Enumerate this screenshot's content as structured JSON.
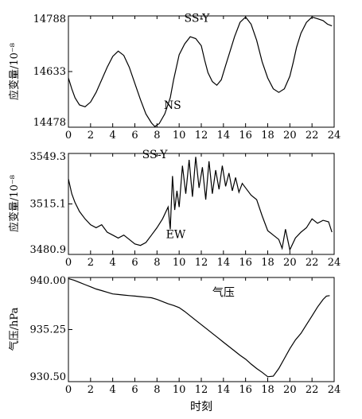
{
  "chart_data": [
    {
      "type": "line",
      "ylabel": "应变量/10⁻⁸",
      "xlabel": "",
      "xlim": [
        0,
        24
      ],
      "ylim": [
        14478,
        14788
      ],
      "xticks": [
        0,
        2,
        4,
        6,
        8,
        10,
        12,
        14,
        16,
        18,
        20,
        22,
        24
      ],
      "yticks": [
        14478,
        14633,
        14788
      ],
      "annotations": [
        {
          "text": "SS-Y",
          "x": 11.6,
          "y": 14771
        },
        {
          "text": "NS",
          "x": 9.4,
          "y": 14529
        }
      ],
      "series": [
        {
          "x": [
            0,
            0.3,
            0.6,
            1,
            1.5,
            2,
            2.5,
            3,
            3.5,
            4,
            4.5,
            5,
            5.5,
            6,
            6.5,
            7,
            7.5,
            7.8,
            8.2,
            8.7,
            9.2,
            9.5,
            10,
            10.5,
            11,
            11.5,
            12,
            12.3,
            12.6,
            13,
            13.4,
            13.8,
            14.2,
            14.6,
            15,
            15.5,
            16,
            16.5,
            17,
            17.5,
            18,
            18.5,
            19,
            19.5,
            20,
            20.3,
            20.6,
            21,
            21.5,
            22,
            22.5,
            23,
            23.4,
            23.8
          ],
          "y": [
            14615,
            14585,
            14560,
            14540,
            14535,
            14548,
            14575,
            14610,
            14645,
            14675,
            14690,
            14678,
            14645,
            14600,
            14555,
            14515,
            14490,
            14480,
            14488,
            14515,
            14560,
            14610,
            14680,
            14710,
            14730,
            14725,
            14705,
            14665,
            14630,
            14605,
            14595,
            14610,
            14650,
            14690,
            14730,
            14770,
            14785,
            14765,
            14720,
            14660,
            14615,
            14585,
            14575,
            14585,
            14620,
            14658,
            14700,
            14740,
            14770,
            14785,
            14780,
            14775,
            14765,
            14760
          ]
        }
      ]
    },
    {
      "type": "line",
      "ylabel": "应变量/10⁻⁸",
      "xlabel": "",
      "xlim": [
        0,
        24
      ],
      "ylim": [
        3480.9,
        3549.3
      ],
      "xticks": [
        0,
        2,
        4,
        6,
        8,
        10,
        12,
        14,
        16,
        18,
        20,
        22,
        24
      ],
      "yticks": [
        3480.9,
        3515.1,
        3549.3
      ],
      "annotations": [
        {
          "text": "SS-Y",
          "x": 7.8,
          "y": 3546
        },
        {
          "text": "EW",
          "x": 9.7,
          "y": 3492
        }
      ],
      "series": [
        {
          "x": [
            0,
            0.3,
            0.6,
            1,
            1.5,
            2,
            2.5,
            3,
            3.5,
            4,
            4.5,
            5,
            5.5,
            6,
            6.5,
            7,
            7.5,
            8,
            8.5,
            9,
            9.2,
            9.4,
            9.6,
            9.8,
            10,
            10.3,
            10.6,
            10.9,
            11.2,
            11.5,
            11.8,
            12.1,
            12.4,
            12.7,
            13,
            13.3,
            13.6,
            13.9,
            14.2,
            14.5,
            14.8,
            15.1,
            15.4,
            15.7,
            16,
            16.5,
            17,
            17.5,
            18,
            18.5,
            19,
            19.3,
            19.6,
            20,
            20.5,
            21,
            21.5,
            22,
            22.5,
            23,
            23.5,
            23.8
          ],
          "y": [
            3532,
            3522,
            3516,
            3510,
            3505,
            3501,
            3499,
            3501,
            3496,
            3494,
            3492,
            3494,
            3491,
            3488,
            3487,
            3489,
            3494,
            3499,
            3505,
            3513,
            3498,
            3534,
            3511,
            3524,
            3513,
            3541,
            3522,
            3545,
            3520,
            3547,
            3526,
            3540,
            3518,
            3544,
            3522,
            3538,
            3525,
            3541,
            3527,
            3536,
            3524,
            3533,
            3523,
            3529,
            3526,
            3521,
            3518,
            3507,
            3497,
            3494,
            3491,
            3485,
            3498,
            3484,
            3492,
            3496,
            3499,
            3505,
            3502,
            3504,
            3503,
            3496
          ]
        }
      ]
    },
    {
      "type": "line",
      "ylabel": "气压/hPa",
      "xlabel": "时刻",
      "xlim": [
        0,
        24
      ],
      "ylim": [
        930.5,
        940.0
      ],
      "xticks": [
        0,
        2,
        4,
        6,
        8,
        10,
        12,
        14,
        16,
        18,
        20,
        22,
        24
      ],
      "yticks": [
        930.5,
        935.25,
        940.0
      ],
      "annotations": [
        {
          "text": "气压",
          "x": 14.0,
          "y": 938.3
        }
      ],
      "series": [
        {
          "x": [
            0,
            0.5,
            1,
            1.5,
            2,
            2.5,
            3,
            3.5,
            4,
            4.5,
            5,
            5.5,
            6,
            6.5,
            7,
            7.5,
            8,
            8.5,
            9,
            9.5,
            10,
            10.5,
            11,
            11.5,
            12,
            12.5,
            13,
            13.5,
            14,
            14.5,
            15,
            15.5,
            16,
            16.5,
            17,
            17.5,
            18,
            18.5,
            19,
            19.5,
            20,
            20.5,
            21,
            21.5,
            22,
            22.5,
            23,
            23.3,
            23.6
          ],
          "y": [
            939.9,
            939.75,
            939.55,
            939.35,
            939.15,
            938.95,
            938.8,
            938.65,
            938.5,
            938.45,
            938.4,
            938.35,
            938.3,
            938.25,
            938.2,
            938.15,
            938.0,
            937.8,
            937.6,
            937.45,
            937.25,
            936.9,
            936.5,
            936.1,
            935.7,
            935.3,
            934.9,
            934.5,
            934.1,
            933.7,
            933.3,
            932.9,
            932.55,
            932.1,
            931.7,
            931.35,
            930.95,
            931.0,
            931.7,
            932.6,
            933.5,
            934.3,
            934.9,
            935.7,
            936.5,
            937.3,
            938.0,
            938.3,
            938.35
          ]
        }
      ]
    }
  ]
}
